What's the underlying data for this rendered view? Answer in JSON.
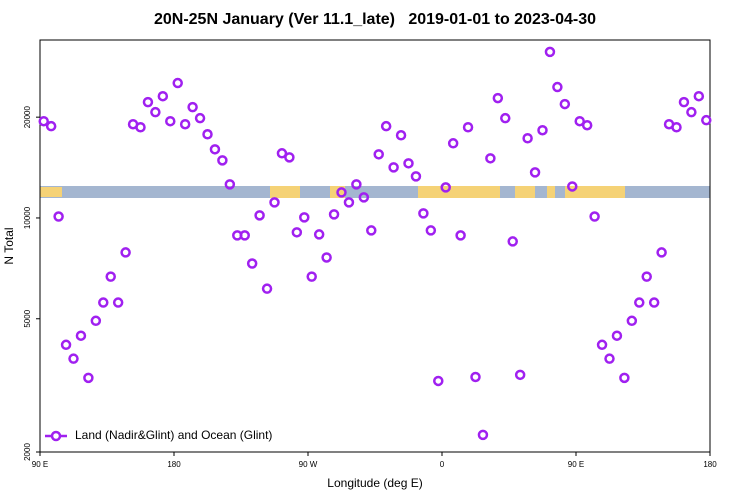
{
  "chart_data": {
    "type": "scatter",
    "title": "20N-25N January (Ver 11.1_late)   2019-01-01 to 2023-04-30",
    "x_label": "Longitude (deg E)",
    "y_label": "N Total",
    "xlim": [
      90,
      540
    ],
    "ylim": [
      2000,
      34000
    ],
    "log_y": true,
    "grid": false,
    "legend": "lower left",
    "xticks": [
      {
        "value": 90,
        "label": "90 E"
      },
      {
        "value": 180,
        "label": "180"
      },
      {
        "value": 270,
        "label": "90 W"
      },
      {
        "value": 360,
        "label": "0"
      },
      {
        "value": 450,
        "label": "90 E"
      },
      {
        "value": 540,
        "label": "180"
      }
    ],
    "yticks": [
      2000,
      5000,
      10000,
      20000
    ],
    "series": [
      {
        "name": "Land (Nadir&Glint) and Ocean (Glint)",
        "color": "#a020f0",
        "x": [
          92.5,
          97.5,
          102.5,
          107.5,
          112.5,
          117.5,
          122.5,
          127.5,
          132.5,
          137.5,
          142.5,
          147.5,
          152.5,
          157.5,
          162.5,
          167.5,
          172.5,
          177.5,
          182.5,
          187.5,
          192.5,
          197.5,
          202.5,
          207.5,
          212.5,
          217.5,
          222.5,
          227.5,
          232.5,
          237.5,
          242.5,
          247.5,
          252.5,
          257.5,
          262.5,
          267.5,
          272.5,
          277.5,
          282.5,
          287.5,
          292.5,
          297.5,
          302.5,
          307.5,
          312.5,
          317.5,
          322.5,
          327.5,
          332.5,
          337.5,
          342.5,
          347.5,
          352.5,
          357.5,
          362.5,
          367.5,
          372.5,
          377.5,
          382.5,
          387.5,
          392.5,
          397.5,
          402.5,
          407.5,
          412.5,
          417.5,
          422.5,
          427.5,
          432.5,
          437.5,
          442.5,
          447.5,
          452.5,
          457.5,
          462.5,
          467.5,
          472.5,
          477.5,
          482.5,
          487.5,
          492.5,
          497.5,
          502.5,
          507.5,
          512.5,
          517.5,
          522.5,
          527.5,
          532.5,
          537.5
        ],
        "values": [
          19450,
          18800,
          10100,
          4180,
          3800,
          4450,
          3330,
          4930,
          5590,
          6680,
          5590,
          7890,
          19050,
          18660,
          22180,
          20700,
          23100,
          19450,
          25290,
          19050,
          21430,
          19860,
          17780,
          16030,
          14860,
          12600,
          8870,
          8870,
          7310,
          10180,
          6150,
          11130,
          15600,
          15170,
          9060,
          10040,
          6680,
          8930,
          7620,
          10250,
          11920,
          11130,
          12600,
          11520,
          9180,
          15490,
          18800,
          14160,
          17660,
          14560,
          13310,
          10320,
          9180,
          3260,
          12340,
          16710,
          8870,
          18660,
          3350,
          2250,
          15070,
          22800,
          19860,
          8510,
          3400,
          17300,
          13680,
          18280,
          31330,
          24600,
          21880,
          12420,
          19450,
          18920,
          10100,
          4180,
          3800,
          4450,
          3330,
          4930,
          5590,
          6680,
          5590,
          7890,
          19050,
          18660,
          22180,
          20700,
          23100,
          19590
        ]
      }
    ]
  }
}
